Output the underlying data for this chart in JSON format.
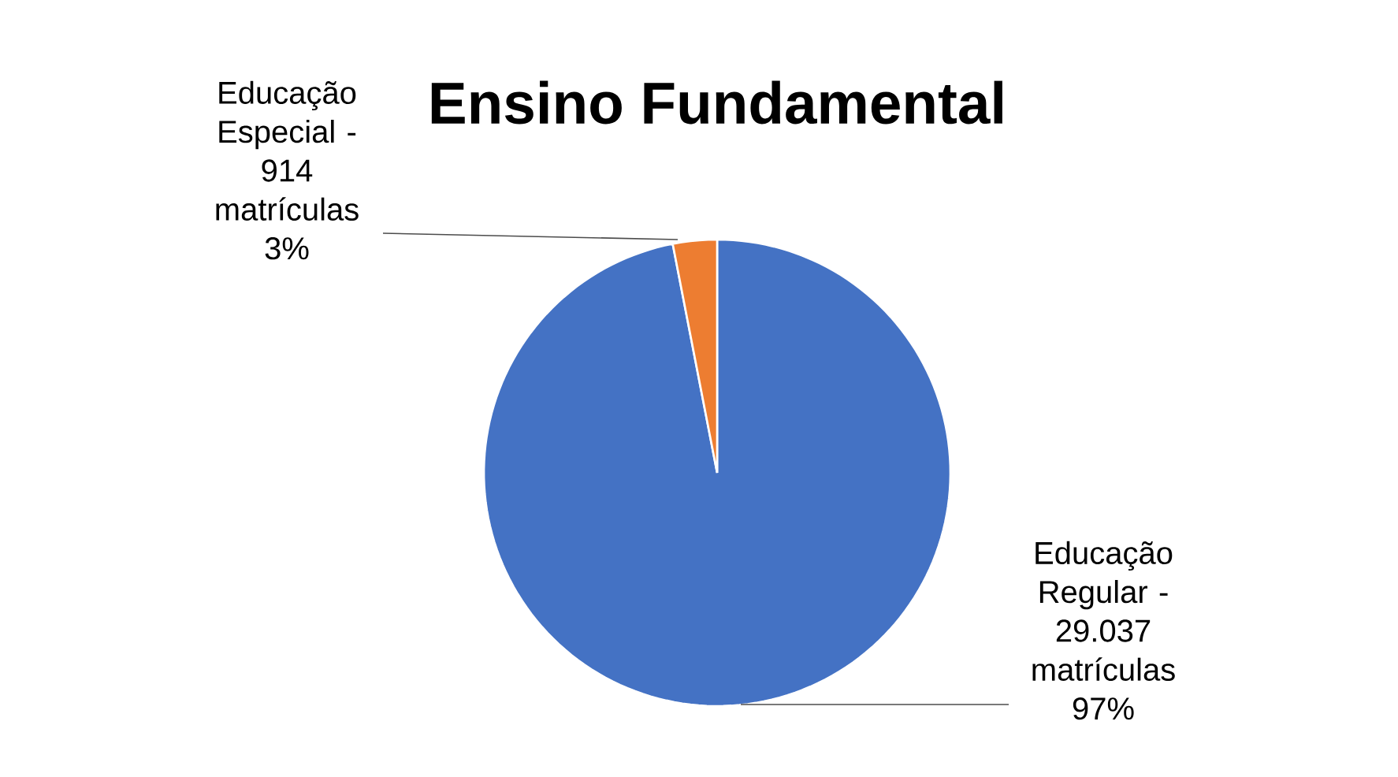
{
  "chart_data": {
    "type": "pie",
    "title": "Ensino Fundamental",
    "categories": [
      "Educação Regular -",
      "Educação Especial -"
    ],
    "values": [
      29037,
      914
    ],
    "colors": [
      "#4472c4",
      "#ed7d31"
    ],
    "value_labels": [
      "29.037 matrículas 97%",
      "914 matrículas 3%"
    ]
  }
}
